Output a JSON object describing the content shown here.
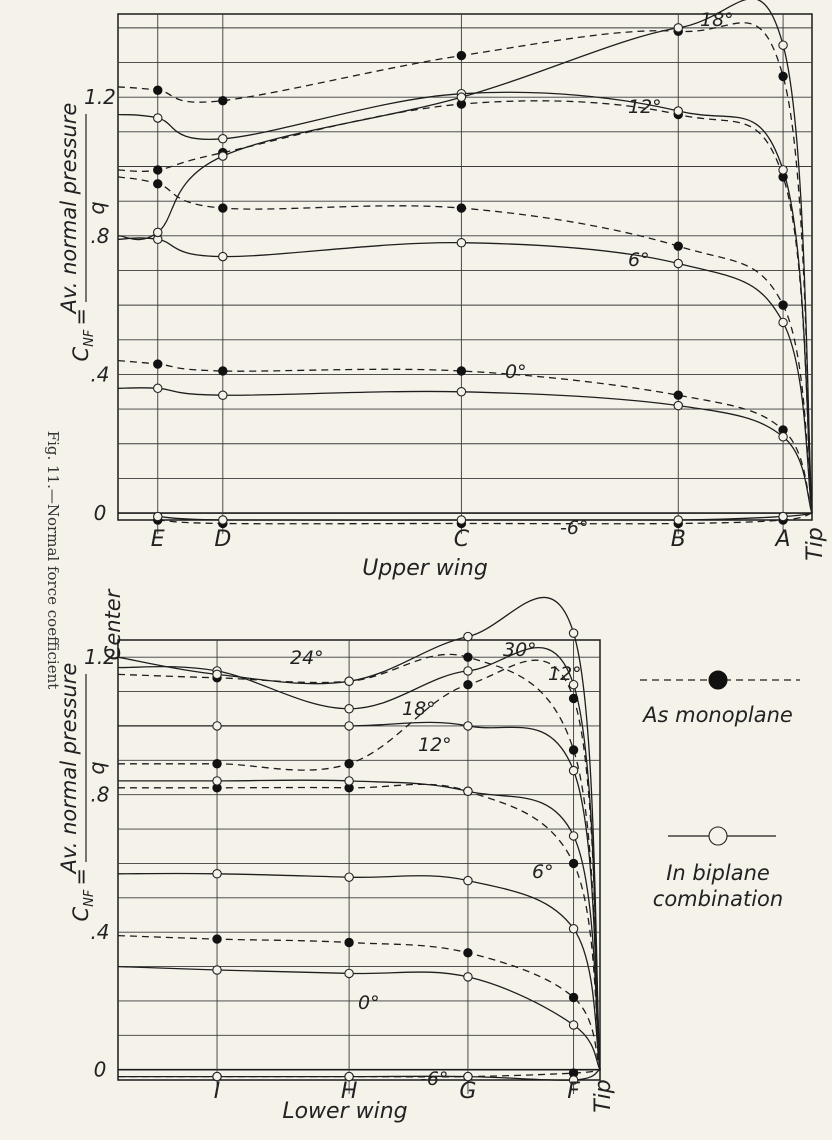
{
  "caption": "Fig. 11.—Normal force coefficient",
  "y_label_lhs": "C",
  "y_label_sub": "NF",
  "y_label_eq": "=",
  "y_label_num": "Av. normal pressure",
  "y_label_den": "q",
  "center_label": "Center",
  "legend": {
    "monoplane": "As monoplane",
    "biplane_line1": "In biplane",
    "biplane_line2": "combination"
  },
  "chart_data": [
    {
      "type": "line",
      "xlabel": "Upper wing",
      "categories": [
        "E",
        "D",
        "C",
        "B",
        "A",
        "Tip"
      ],
      "x": [
        0.55,
        1.45,
        4.75,
        7.75,
        9.2,
        9.6
      ],
      "ytick_labels": [
        "0",
        ".4",
        ".8",
        "1.2"
      ],
      "ylim": [
        -0.02,
        1.44
      ],
      "grid": true,
      "series": [
        {
          "name": "-6°",
          "config": "monoplane",
          "label_angle": "-6°",
          "points": [
            [
              0.55,
              -0.02
            ],
            [
              1.45,
              -0.03
            ],
            [
              4.75,
              -0.03
            ],
            [
              7.75,
              -0.03
            ],
            [
              9.2,
              -0.02
            ],
            [
              9.6,
              0
            ]
          ]
        },
        {
          "name": "-6°",
          "config": "biplane",
          "label_angle": "",
          "points": [
            [
              0.55,
              -0.01
            ],
            [
              1.45,
              -0.02
            ],
            [
              4.75,
              -0.02
            ],
            [
              7.75,
              -0.02
            ],
            [
              9.2,
              -0.01
            ],
            [
              9.6,
              0
            ]
          ]
        },
        {
          "name": "0°",
          "config": "monoplane",
          "label_angle": "0°",
          "points": [
            [
              0,
              0.44
            ],
            [
              0.55,
              0.43
            ],
            [
              1.45,
              0.41
            ],
            [
              4.75,
              0.41
            ],
            [
              7.75,
              0.34
            ],
            [
              9.2,
              0.24
            ],
            [
              9.6,
              0
            ]
          ]
        },
        {
          "name": "0°",
          "config": "biplane",
          "label_angle": "",
          "points": [
            [
              0,
              0.36
            ],
            [
              0.55,
              0.36
            ],
            [
              1.45,
              0.34
            ],
            [
              4.75,
              0.35
            ],
            [
              7.75,
              0.31
            ],
            [
              9.2,
              0.22
            ],
            [
              9.6,
              0
            ]
          ]
        },
        {
          "name": "6°",
          "config": "monoplane",
          "label_angle": "6°",
          "points": [
            [
              0,
              0.97
            ],
            [
              0.55,
              0.95
            ],
            [
              1.45,
              0.88
            ],
            [
              4.75,
              0.88
            ],
            [
              7.75,
              0.77
            ],
            [
              9.2,
              0.6
            ],
            [
              9.6,
              0
            ]
          ]
        },
        {
          "name": "6°",
          "config": "biplane",
          "label_angle": "",
          "points": [
            [
              0,
              0.79
            ],
            [
              0.55,
              0.79
            ],
            [
              1.45,
              0.74
            ],
            [
              4.75,
              0.78
            ],
            [
              7.75,
              0.72
            ],
            [
              9.2,
              0.55
            ],
            [
              9.6,
              0
            ]
          ]
        },
        {
          "name": "12°",
          "config": "monoplane",
          "label_angle": "12°",
          "points": [
            [
              0,
              0.99
            ],
            [
              0.55,
              0.99
            ],
            [
              1.45,
              1.04
            ],
            [
              4.75,
              1.18
            ],
            [
              7.75,
              1.15
            ],
            [
              9.2,
              0.97
            ],
            [
              9.6,
              0
            ]
          ]
        },
        {
          "name": "12°",
          "config": "biplane",
          "label_angle": "",
          "points": [
            [
              0,
              1.15
            ],
            [
              0.55,
              1.14
            ],
            [
              1.45,
              1.08
            ],
            [
              4.75,
              1.21
            ],
            [
              7.75,
              1.16
            ],
            [
              9.2,
              0.99
            ],
            [
              9.6,
              0
            ]
          ]
        },
        {
          "name": "18°",
          "config": "monoplane",
          "label_angle": "18°",
          "points": [
            [
              0,
              1.23
            ],
            [
              0.55,
              1.22
            ],
            [
              1.45,
              1.19
            ],
            [
              4.75,
              1.32
            ],
            [
              7.75,
              1.39
            ],
            [
              9.2,
              1.26
            ],
            [
              9.6,
              0
            ]
          ]
        },
        {
          "name": "18°",
          "config": "biplane",
          "label_angle": "",
          "points": [
            [
              0,
              0.8
            ],
            [
              0.55,
              0.81
            ],
            [
              1.45,
              1.03
            ],
            [
              4.75,
              1.2
            ],
            [
              7.75,
              1.4
            ],
            [
              9.2,
              1.35
            ],
            [
              9.6,
              0
            ]
          ]
        }
      ]
    },
    {
      "type": "line",
      "xlabel": "Lower wing",
      "categories": [
        "I",
        "H",
        "G",
        "F",
        "Tip"
      ],
      "x": [
        1.5,
        3.5,
        5.3,
        6.9,
        7.3
      ],
      "ytick_labels": [
        "0",
        ".4",
        ".8",
        "1.2"
      ],
      "ylim": [
        -0.03,
        1.25
      ],
      "grid": true,
      "series": [
        {
          "name": "-6°",
          "config": "monoplane",
          "label_angle": "-6°",
          "points": [
            [
              0,
              -0.02
            ],
            [
              1.5,
              -0.02
            ],
            [
              3.5,
              -0.02
            ],
            [
              5.3,
              -0.02
            ],
            [
              6.9,
              -0.01
            ],
            [
              7.3,
              0
            ]
          ]
        },
        {
          "name": "-6°",
          "config": "biplane",
          "label_angle": "",
          "points": [
            [
              0,
              -0.02
            ],
            [
              1.5,
              -0.02
            ],
            [
              3.5,
              -0.02
            ],
            [
              5.3,
              -0.02
            ],
            [
              6.9,
              -0.03
            ],
            [
              7.3,
              0
            ]
          ]
        },
        {
          "name": "0°",
          "config": "monoplane",
          "label_angle": "0°",
          "points": [
            [
              0,
              0.39
            ],
            [
              1.5,
              0.38
            ],
            [
              3.5,
              0.37
            ],
            [
              5.3,
              0.34
            ],
            [
              6.9,
              0.21
            ],
            [
              7.3,
              0
            ]
          ]
        },
        {
          "name": "0°",
          "config": "biplane",
          "label_angle": "",
          "points": [
            [
              0,
              0.3
            ],
            [
              1.5,
              0.29
            ],
            [
              3.5,
              0.28
            ],
            [
              5.3,
              0.27
            ],
            [
              6.9,
              0.13
            ],
            [
              7.3,
              0
            ]
          ]
        },
        {
          "name": "6°",
          "config": "monoplane",
          "label_angle": "",
          "points": [
            [
              0,
              0.82
            ],
            [
              1.5,
              0.82
            ],
            [
              3.5,
              0.82
            ],
            [
              5.3,
              0.81
            ],
            [
              6.9,
              0.6
            ],
            [
              7.3,
              0
            ]
          ]
        },
        {
          "name": "6°",
          "config": "biplane",
          "label_angle": "6°",
          "points": [
            [
              0,
              0.57
            ],
            [
              1.5,
              0.57
            ],
            [
              3.5,
              0.56
            ],
            [
              5.3,
              0.55
            ],
            [
              6.9,
              0.41
            ],
            [
              7.3,
              0
            ]
          ]
        },
        {
          "name": "12°",
          "config": "monoplane",
          "label_angle": "12°",
          "points": [
            [
              0,
              0.89
            ],
            [
              1.5,
              0.89
            ],
            [
              3.5,
              0.89
            ],
            [
              5.3,
              1.12
            ],
            [
              6.9,
              1.08
            ],
            [
              7.3,
              0
            ]
          ]
        },
        {
          "name": "12°",
          "config": "biplane",
          "label_angle": "12°",
          "points": [
            [
              0,
              0.84
            ],
            [
              1.5,
              0.84
            ],
            [
              3.5,
              0.84
            ],
            [
              5.3,
              0.81
            ],
            [
              6.9,
              0.68
            ],
            [
              7.3,
              0
            ]
          ]
        },
        {
          "name": "18°",
          "config": "monoplane",
          "label_angle": "",
          "points": [
            [
              0,
              1.15
            ],
            [
              1.5,
              1.14
            ],
            [
              3.5,
              1.13
            ],
            [
              5.3,
              1.2
            ],
            [
              6.9,
              0.93
            ],
            [
              7.3,
              0
            ]
          ]
        },
        {
          "name": "18°",
          "config": "biplane",
          "label_angle": "18°",
          "points": [
            [
              0,
              1.0
            ],
            [
              1.5,
              1.0
            ],
            [
              3.5,
              1.0
            ],
            [
              5.3,
              1.0
            ],
            [
              6.9,
              0.87
            ],
            [
              7.3,
              0
            ]
          ]
        },
        {
          "name": "24°",
          "config": "biplane",
          "label_angle": "24°",
          "points": [
            [
              0,
              1.17
            ],
            [
              1.5,
              1.16
            ],
            [
              3.5,
              1.05
            ],
            [
              5.3,
              1.16
            ],
            [
              6.9,
              1.12
            ],
            [
              7.3,
              0
            ]
          ]
        },
        {
          "name": "30°",
          "config": "biplane",
          "label_angle": "30°",
          "points": [
            [
              0,
              1.2
            ],
            [
              1.5,
              1.15
            ],
            [
              3.5,
              1.13
            ],
            [
              5.3,
              1.26
            ],
            [
              6.9,
              1.27
            ],
            [
              7.3,
              0
            ]
          ]
        }
      ]
    }
  ]
}
